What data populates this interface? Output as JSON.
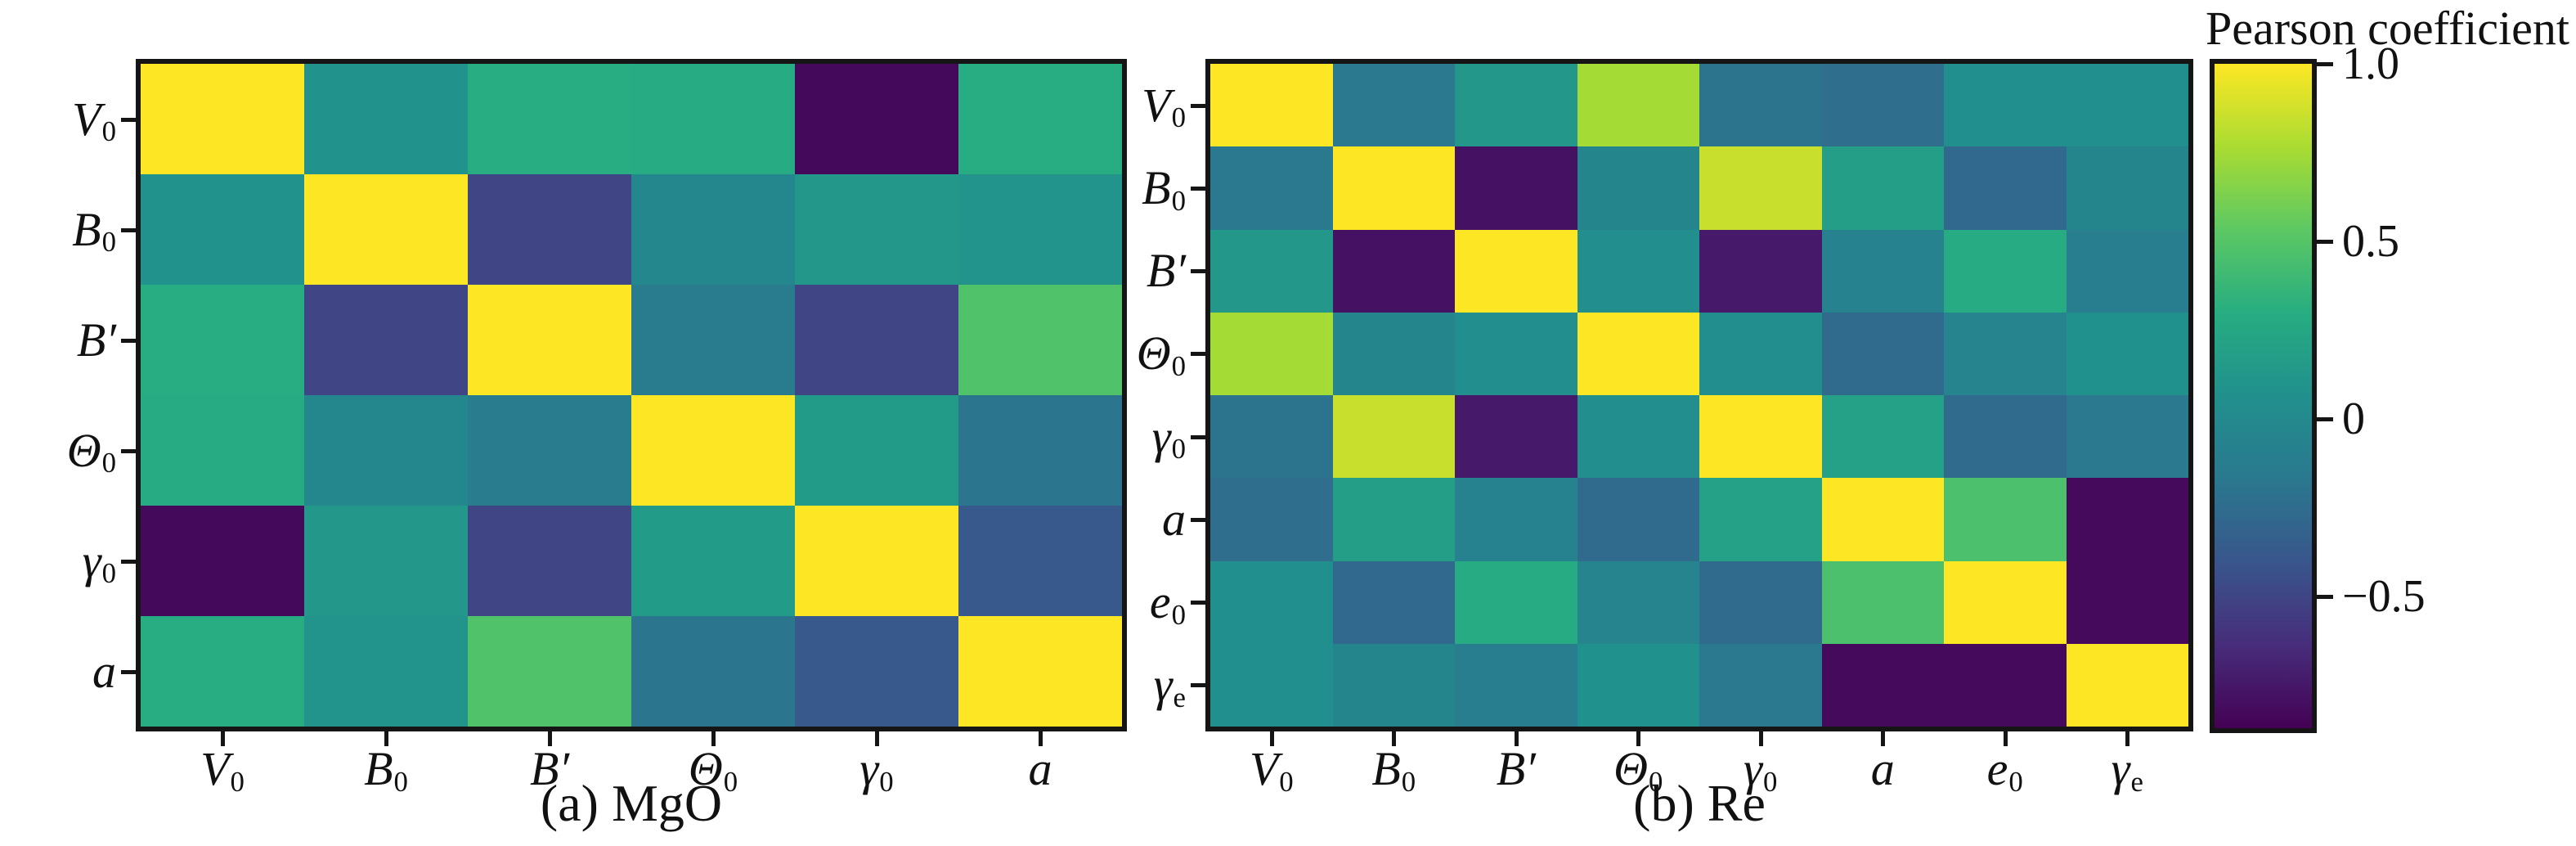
{
  "colorbar": {
    "title": "Pearson coefficient",
    "colormap": "viridis",
    "vmin": -0.87,
    "vmax": 1.0,
    "ticks": [
      {
        "label": "1.0",
        "value": 1.0
      },
      {
        "label": "0.5",
        "value": 0.5
      },
      {
        "label": "0",
        "value": 0.0
      },
      {
        "label": "−0.5",
        "value": -0.5
      }
    ]
  },
  "chart_data": [
    {
      "type": "heatmap",
      "caption": "(a) MgO",
      "labels": [
        "V_0",
        "B_0",
        "B′",
        "Θ_0",
        "γ_0",
        "a"
      ],
      "matrix": [
        [
          1.0,
          0.08,
          0.3,
          0.28,
          -0.83,
          0.3
        ],
        [
          0.08,
          1.0,
          -0.5,
          -0.02,
          0.12,
          0.1
        ],
        [
          0.3,
          -0.5,
          1.0,
          -0.13,
          -0.5,
          0.48
        ],
        [
          0.28,
          -0.02,
          -0.13,
          1.0,
          0.15,
          -0.18
        ],
        [
          -0.83,
          0.12,
          -0.5,
          0.15,
          1.0,
          -0.38
        ],
        [
          0.3,
          0.1,
          0.48,
          -0.18,
          -0.38,
          1.0
        ]
      ]
    },
    {
      "type": "heatmap",
      "caption": "(b) Re",
      "labels": [
        "V_0",
        "B_0",
        "B′",
        "Θ_0",
        "γ_0",
        "a",
        "e_0",
        "γ_e"
      ],
      "matrix": [
        [
          1.0,
          -0.16,
          0.12,
          0.75,
          -0.2,
          -0.24,
          0.06,
          0.06
        ],
        [
          -0.16,
          1.0,
          -0.78,
          -0.04,
          0.85,
          0.18,
          -0.28,
          -0.04
        ],
        [
          0.12,
          -0.78,
          1.0,
          0.05,
          -0.74,
          -0.07,
          0.28,
          -0.12
        ],
        [
          0.75,
          -0.04,
          0.05,
          1.0,
          0.05,
          -0.26,
          -0.05,
          0.07
        ],
        [
          -0.2,
          0.85,
          -0.74,
          0.05,
          1.0,
          0.2,
          -0.26,
          -0.16
        ],
        [
          -0.24,
          0.18,
          -0.07,
          -0.26,
          0.2,
          1.0,
          0.46,
          -0.82
        ],
        [
          0.06,
          -0.28,
          0.28,
          -0.05,
          -0.26,
          0.46,
          1.0,
          -0.82
        ],
        [
          0.06,
          -0.04,
          -0.12,
          0.07,
          -0.16,
          -0.82,
          -0.82,
          1.0
        ]
      ]
    }
  ]
}
